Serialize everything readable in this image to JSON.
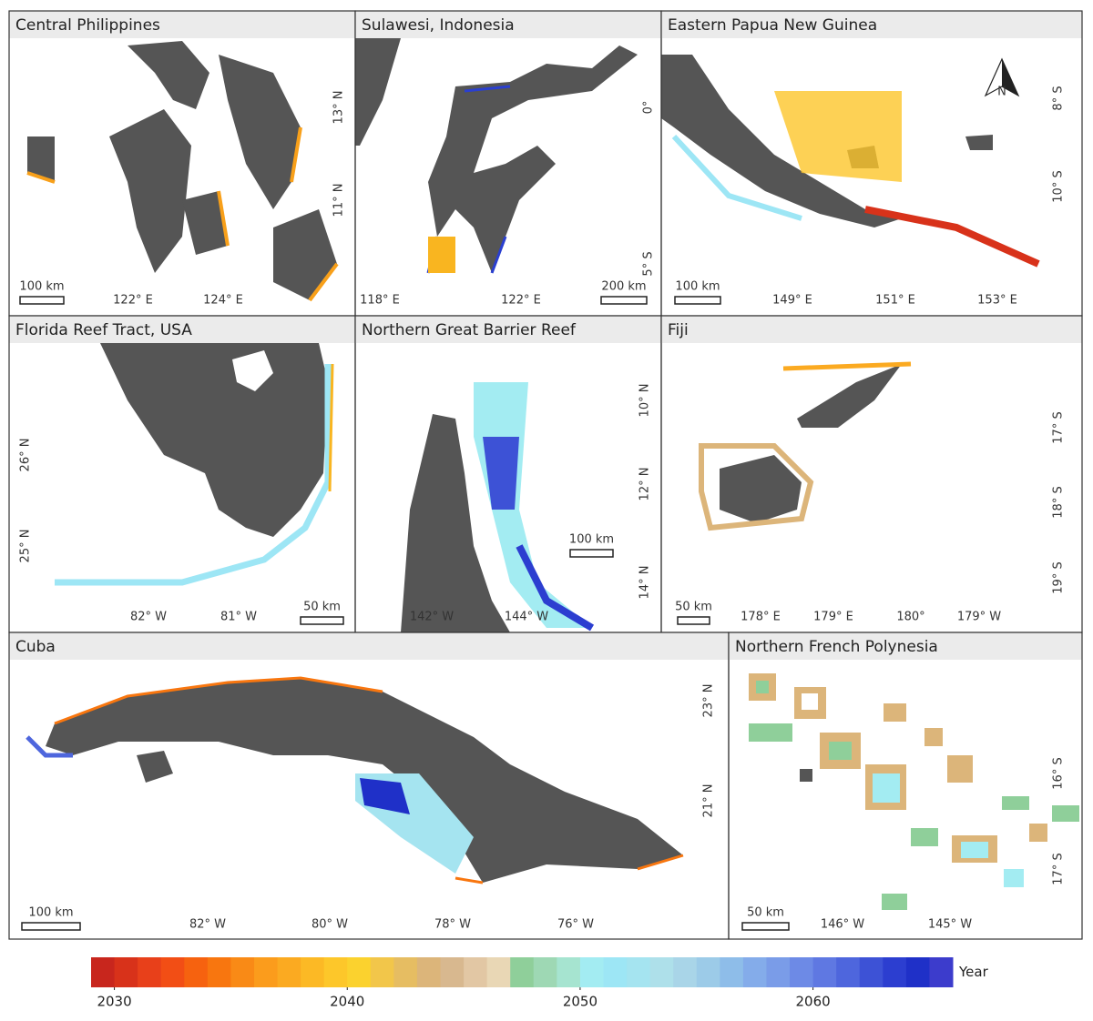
{
  "panels": [
    {
      "title": "Central Philippines",
      "x_labels": [
        "122° E",
        "124° E"
      ],
      "y_labels": [
        "13° N",
        "11° N"
      ],
      "scale_bar": "100 km"
    },
    {
      "title": "Sulawesi, Indonesia",
      "x_labels": [
        "118° E",
        "122° E"
      ],
      "y_labels": [
        "0°",
        "5° S"
      ],
      "scale_bar": "200 km"
    },
    {
      "title": "Eastern Papua New Guinea",
      "x_labels": [
        "149° E",
        "151° E",
        "153° E"
      ],
      "y_labels": [
        "8° S",
        "10° S"
      ],
      "scale_bar": "100 km",
      "north_arrow": "N"
    },
    {
      "title": "Florida Reef Tract, USA",
      "x_labels": [
        "82° W",
        "81° W"
      ],
      "y_labels": [
        "26° N",
        "25° N"
      ],
      "scale_bar": "50 km"
    },
    {
      "title": "Northern Great Barrier Reef",
      "x_labels": [
        "142° W",
        "144° W"
      ],
      "y_labels": [
        "10° N",
        "12° N",
        "14° N"
      ],
      "scale_bar": "100 km"
    },
    {
      "title": "Fiji",
      "x_labels": [
        "178° E",
        "179° E",
        "180°",
        "179° W"
      ],
      "y_labels": [
        "17° S",
        "18° S",
        "19° S"
      ],
      "scale_bar": "50 km"
    },
    {
      "title": "Cuba",
      "x_labels": [
        "82° W",
        "80° W",
        "78° W",
        "76° W"
      ],
      "y_labels": [
        "23° N",
        "21° N"
      ],
      "scale_bar": "100 km"
    },
    {
      "title": "Northern French Polynesia",
      "x_labels": [
        "146° W",
        "145° W"
      ],
      "y_labels": [
        "16° S",
        "17° S"
      ],
      "scale_bar": "50 km"
    }
  ],
  "legend": {
    "title": "Year",
    "range": [
      2029,
      2066
    ],
    "ticks": [
      2030,
      2040,
      2050,
      2060
    ],
    "colors": [
      "#c8261d",
      "#d8321a",
      "#e8401a",
      "#f24e15",
      "#f6620f",
      "#f8760f",
      "#f98a16",
      "#fb9c1c",
      "#fbaa21",
      "#fcb925",
      "#fdc72a",
      "#fbd22e",
      "#f2c64a",
      "#e6bd62",
      "#dcb57a",
      "#d8b88f",
      "#e2c7a4",
      "#e9d7b5",
      "#8fcf9a",
      "#9ed8b4",
      "#a6e4d0",
      "#a3ecf2",
      "#9de6f5",
      "#a5e4f0",
      "#aee0ea",
      "#a9d5e8",
      "#9ccbe8",
      "#8ebde9",
      "#84acea",
      "#7a9ce8",
      "#6d8ae6",
      "#5f78e2",
      "#4e66dd",
      "#3d52d6",
      "#2c3ed0",
      "#1f30c8",
      "#3c3ccc"
    ]
  }
}
